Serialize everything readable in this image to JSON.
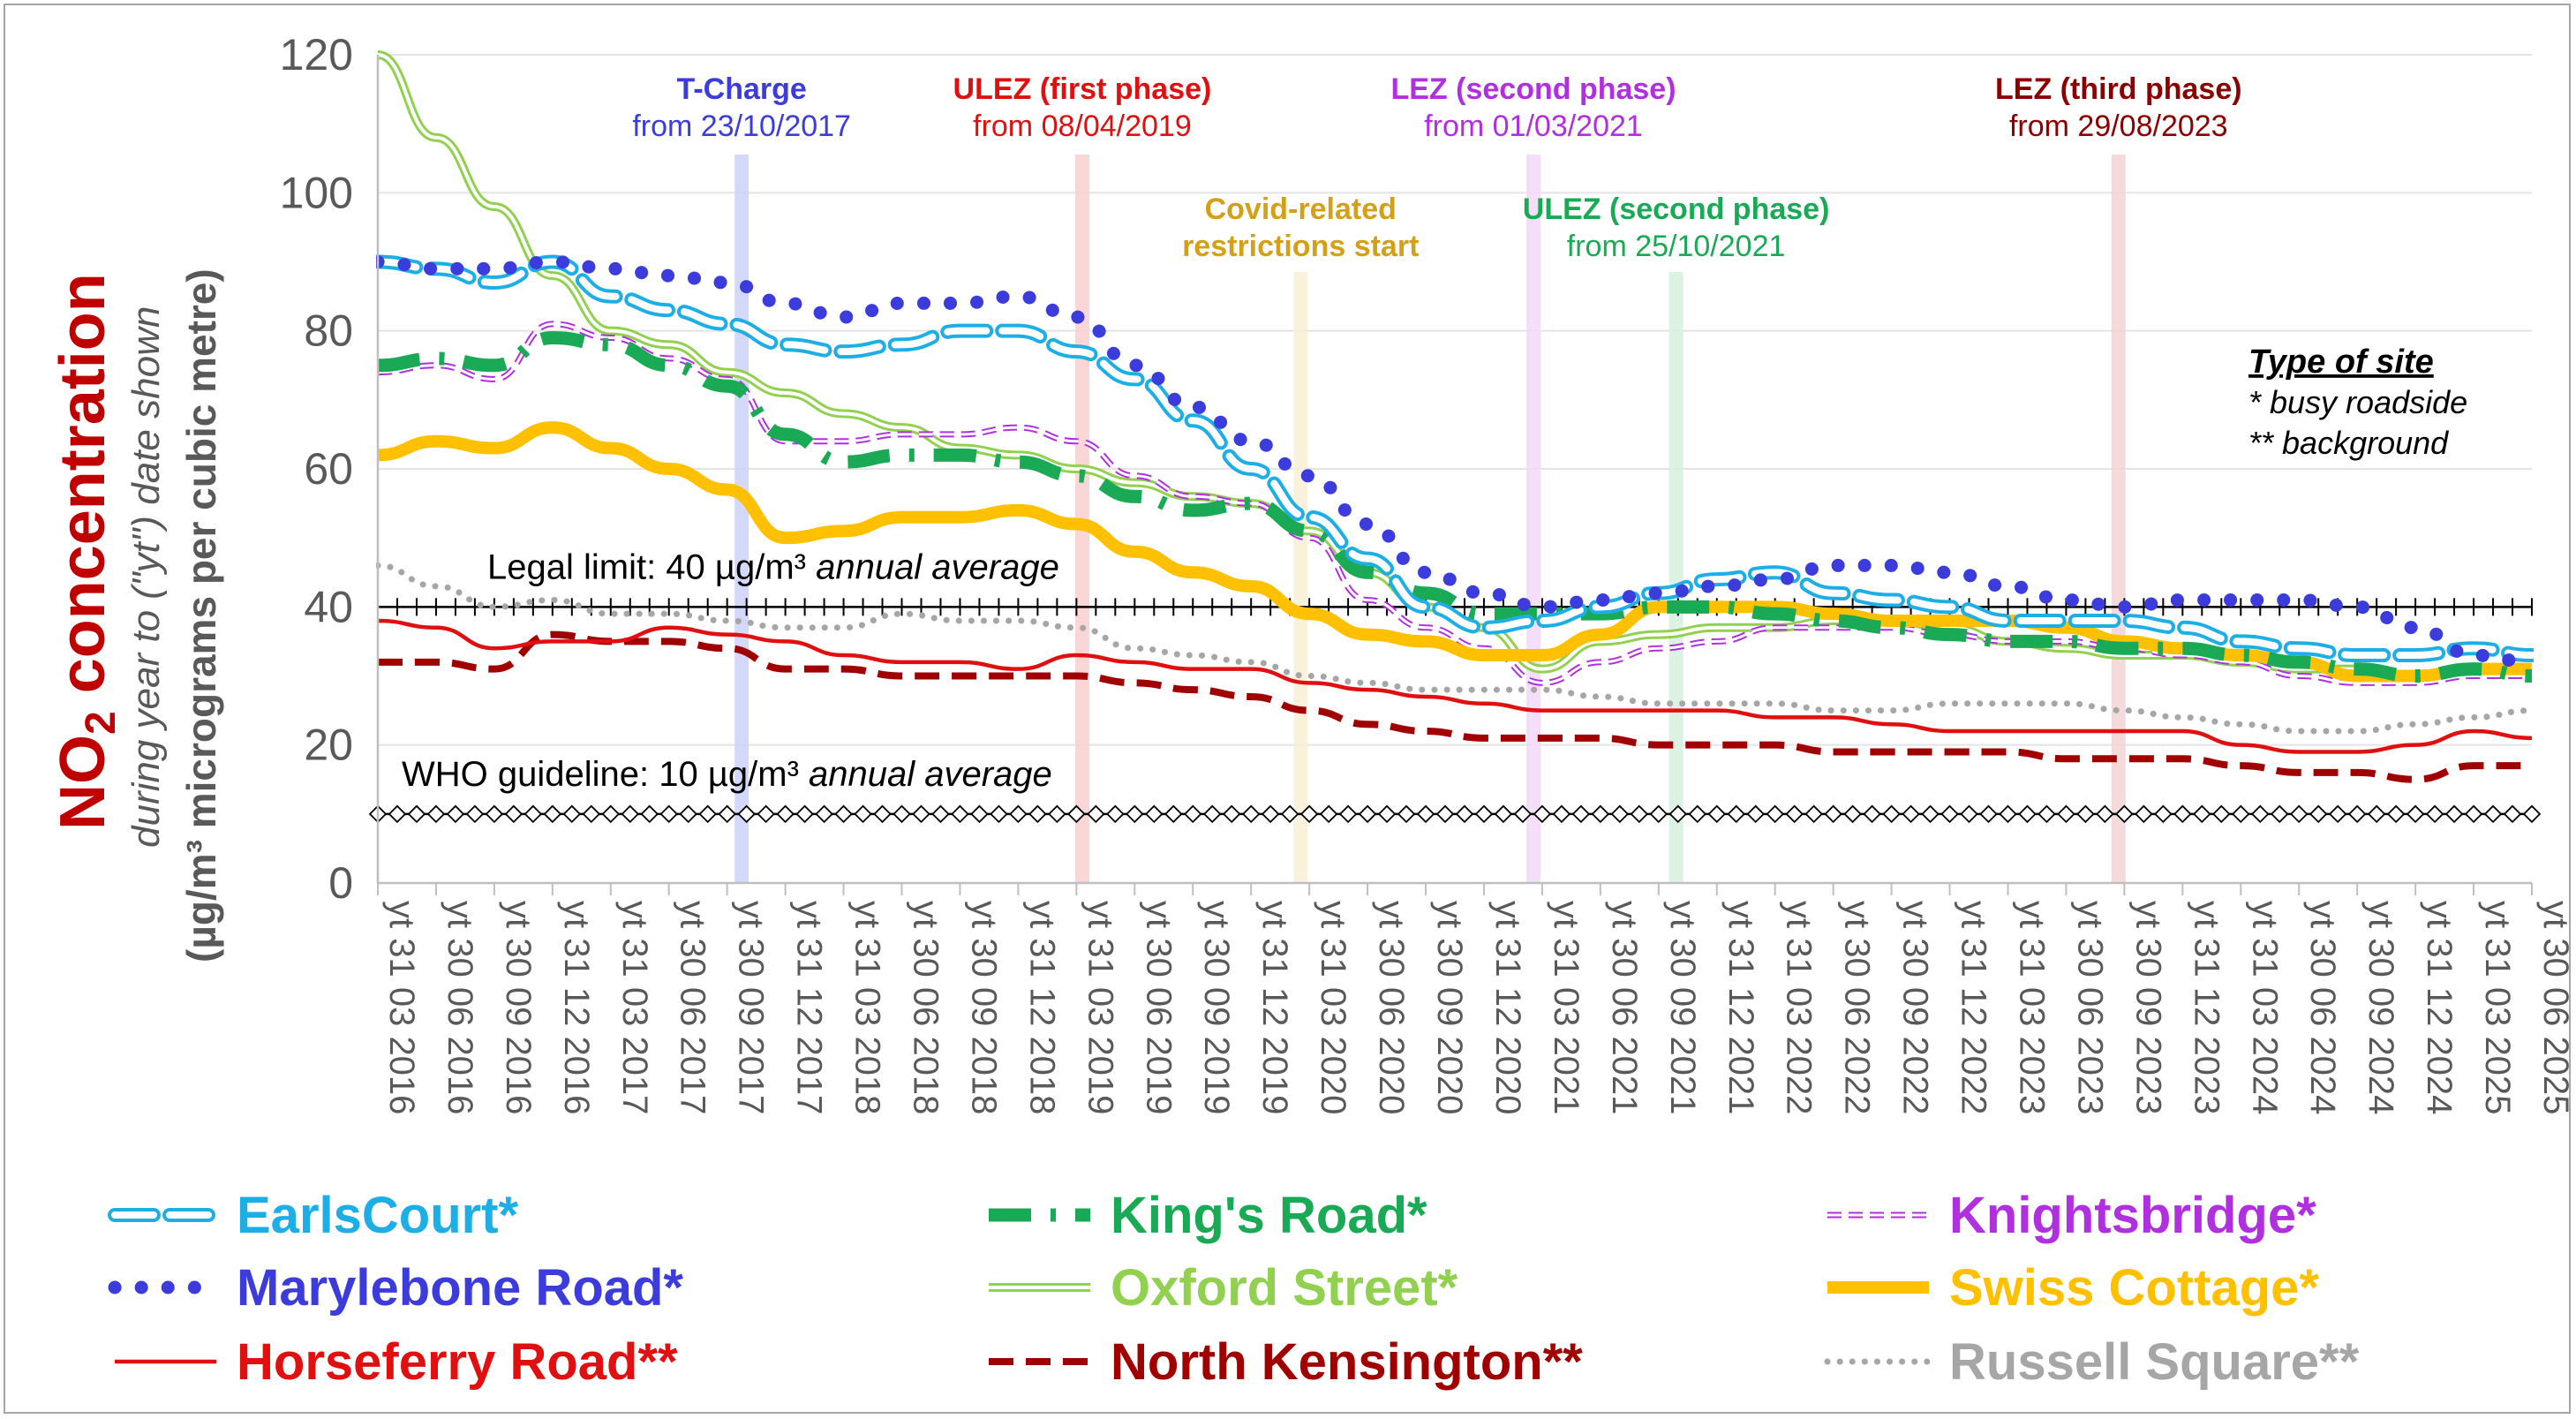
{
  "chart_data": {
    "type": "line",
    "title_main": "NO",
    "title_sub": "2",
    "title_rest": " concentration",
    "ylabel_line1": "during year to (\"yt\") date shown",
    "ylabel_line2": "(µg/m³ micrograms per cubic metre)",
    "ylim": [
      0,
      120
    ],
    "yticks": [
      "0",
      "20",
      "40",
      "60",
      "80",
      "100",
      "120"
    ],
    "x_labels": [
      "yt 31 03 2016",
      "yt 30 06 2016",
      "yt 30 09 2016",
      "yt 31 12 2016",
      "yt 31 03 2017",
      "yt 30 06 2017",
      "yt 30 09 2017",
      "yt 31 12 2017",
      "yt 31 03 2018",
      "yt 30 06 2018",
      "yt 30 09 2018",
      "yt 31 12 2018",
      "yt 31 03 2019",
      "yt 30 06 2019",
      "yt 30 09 2019",
      "yt 31 12 2019",
      "yt 31 03 2020",
      "yt 30 06 2020",
      "yt 30 09 2020",
      "yt 31 12 2020",
      "yt 31 03 2021",
      "yt 30 06 2021",
      "yt 30 09 2021",
      "yt 31 12 2021",
      "yt 31 03 2022",
      "yt 30 06 2022",
      "yt 30 09 2022",
      "yt 31 12 2022",
      "yt 31 03 2023",
      "yt 30 06 2023",
      "yt 30 09 2023",
      "yt 31 12 2023",
      "yt 31 03 2024",
      "yt 30 06 2024",
      "yt 30 09 2024",
      "yt 31 12 2024",
      "yt 31 03 2025",
      "yt 30 06 2025"
    ],
    "reference_lines": [
      {
        "value": 40,
        "label": "Legal limit: 40 µg/m³ ",
        "label_italic": "annual average"
      },
      {
        "value": 10,
        "label": "WHO guideline: 10 µg/m³ ",
        "label_italic": "annual average"
      }
    ],
    "events": [
      {
        "line1": "T-Charge",
        "line2": "from 23/10/2017",
        "x_index": 6.25,
        "color": "#3c3cdc",
        "band_color": "#cdd2f8"
      },
      {
        "line1": "ULEZ (first phase)",
        "line2": "from 08/04/2019",
        "x_index": 12.1,
        "color": "#e01010",
        "band_color": "#f9cfcf"
      },
      {
        "line1": "Covid-related",
        "line2": "restrictions start",
        "x_index": 15.85,
        "color": "#d4a017",
        "band_color": "#f7eed6"
      },
      {
        "line1": "LEZ (second phase)",
        "line2": "from 01/03/2021",
        "x_index": 19.85,
        "color": "#b030e0",
        "band_color": "#f2d8f8"
      },
      {
        "line1": "ULEZ (second phase)",
        "line2": "from 25/10/2021",
        "x_index": 22.3,
        "color": "#1aaa55",
        "band_color": "#d6f0de"
      },
      {
        "line1": "LEZ (third phase)",
        "line2": "from 29/08/2023",
        "x_index": 29.9,
        "color": "#8b0000",
        "band_color": "#f2d3d3"
      }
    ],
    "site_key": {
      "title": "Type of site",
      "line1": "* busy roadside",
      "line2": "** background"
    },
    "series": [
      {
        "name": "EarlsCourt*",
        "color": "#1eaee6",
        "style": "hollow-dash",
        "values": [
          90,
          89,
          87,
          90,
          85,
          83,
          81,
          78,
          77,
          78,
          80,
          80,
          77,
          73,
          67,
          60,
          53,
          47,
          40,
          37,
          38,
          40,
          42,
          44,
          45,
          42,
          41,
          40,
          38,
          38,
          38,
          37,
          35,
          34,
          33,
          33,
          34,
          33
        ]
      },
      {
        "name": "King's Road*",
        "color": "#1aaa55",
        "style": "thick-dashdot",
        "values": [
          75,
          76,
          75,
          79,
          78,
          75,
          72,
          65,
          61,
          62,
          62,
          61,
          59,
          56,
          54,
          55,
          51,
          45,
          42,
          39,
          39,
          39,
          40,
          40,
          39,
          38,
          37,
          36,
          35,
          35,
          34,
          34,
          33,
          32,
          31,
          30,
          31,
          30
        ]
      },
      {
        "name": "Knightsbridge*",
        "color": "#b030e0",
        "style": "hollow-small-dash",
        "values": [
          74,
          75,
          73,
          81,
          79,
          76,
          73,
          64,
          64,
          65,
          65,
          66,
          64,
          59,
          56,
          55,
          50,
          41,
          37,
          34,
          29,
          32,
          34,
          35,
          37,
          37,
          37,
          36,
          35,
          35,
          34,
          33,
          32,
          30,
          29,
          29,
          30,
          30
        ]
      },
      {
        "name": "Marylebone Road*",
        "color": "#3c3cdc",
        "style": "dots",
        "values": [
          90,
          89,
          89,
          90,
          89,
          88,
          87,
          84,
          82,
          84,
          84,
          85,
          82,
          75,
          69,
          64,
          59,
          52,
          45,
          42,
          40,
          41,
          42,
          43,
          44,
          46,
          46,
          45,
          43,
          41,
          40,
          41,
          41,
          41,
          40,
          37,
          33,
          32
        ]
      },
      {
        "name": "Oxford Street*",
        "color": "#92d050",
        "style": "double",
        "values": [
          120,
          108,
          98,
          88,
          80,
          78,
          74,
          71,
          68,
          66,
          63,
          62,
          60,
          58,
          56,
          55,
          51,
          45,
          40,
          37,
          31,
          35,
          36,
          37,
          37,
          38,
          38,
          37,
          35,
          34,
          33,
          33,
          32,
          31,
          31,
          30,
          31,
          31
        ]
      },
      {
        "name": "Swiss Cottage*",
        "color": "#ffc000",
        "style": "thick-solid",
        "values": [
          62,
          64,
          63,
          66,
          63,
          60,
          57,
          50,
          51,
          53,
          53,
          54,
          52,
          48,
          45,
          43,
          39,
          36,
          35,
          33,
          33,
          36,
          40,
          40,
          40,
          39,
          38,
          38,
          38,
          37,
          35,
          34,
          33,
          32,
          30,
          30,
          31,
          31
        ]
      },
      {
        "name": "Horseferry Road**",
        "color": "#e01010",
        "style": "solid",
        "values": [
          38,
          37,
          34,
          35,
          35,
          37,
          36,
          35,
          33,
          32,
          32,
          31,
          33,
          32,
          31,
          31,
          29,
          28,
          27,
          26,
          25,
          25,
          25,
          25,
          24,
          24,
          23,
          22,
          22,
          22,
          22,
          22,
          20,
          19,
          19,
          20,
          22,
          21
        ]
      },
      {
        "name": "North Kensington**",
        "color": "#a00000",
        "style": "dashed",
        "values": [
          32,
          32,
          31,
          36,
          35,
          35,
          34,
          31,
          31,
          30,
          30,
          30,
          30,
          29,
          28,
          27,
          25,
          23,
          22,
          21,
          21,
          21,
          20,
          20,
          20,
          19,
          19,
          19,
          19,
          18,
          18,
          18,
          17,
          16,
          16,
          15,
          17,
          17
        ]
      },
      {
        "name": "Russell Square**",
        "color": "#a6a6a6",
        "style": "dotted-small",
        "values": [
          46,
          43,
          40,
          41,
          39,
          39,
          38,
          37,
          37,
          39,
          38,
          38,
          37,
          34,
          33,
          32,
          30,
          29,
          28,
          28,
          28,
          27,
          26,
          26,
          26,
          25,
          25,
          26,
          26,
          26,
          25,
          24,
          23,
          22,
          22,
          23,
          24,
          25
        ]
      }
    ],
    "legend_order": [
      0,
      1,
      2,
      3,
      4,
      5,
      6,
      7,
      8
    ]
  }
}
